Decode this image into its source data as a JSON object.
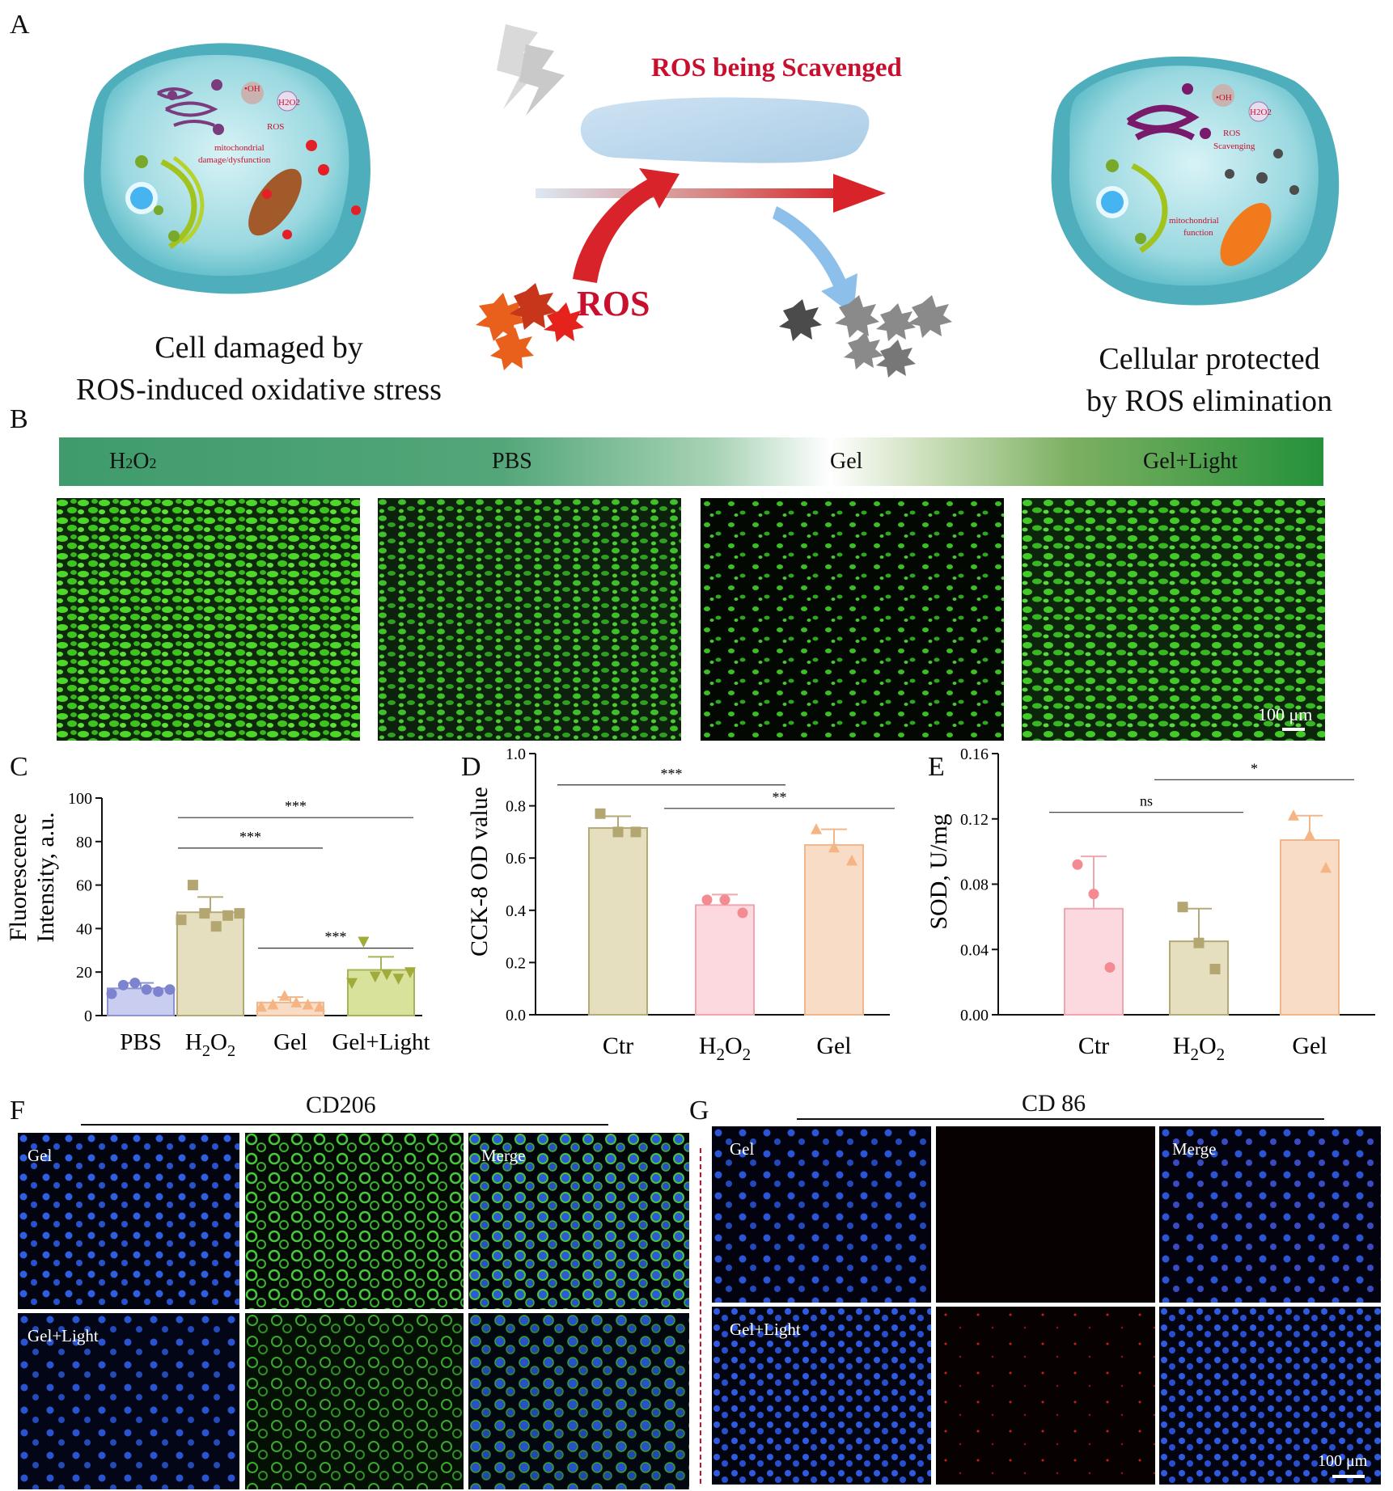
{
  "panels": {
    "A": "A",
    "B": "B",
    "C": "C",
    "D": "D",
    "E": "E",
    "F": "F",
    "G": "G"
  },
  "schematic": {
    "left_caption_line1": "Cell damaged by",
    "left_caption_line2": "ROS-induced oxidative stress",
    "right_caption_line1": "Cellular protected",
    "right_caption_line2": "by ROS elimination",
    "ros_scavenged": "ROS being Scavenged",
    "ros": "ROS",
    "left_cell": {
      "oh": "•OH",
      "h2o2": "H2O2",
      "ros": "ROS",
      "mito1": "mitochondrial",
      "mito2": "damage/dysfunction"
    },
    "right_cell": {
      "oh": "•OH",
      "h2o2": "H2O2",
      "ros1": "ROS",
      "ros2": "Scavenging",
      "mito1": "mitochondrial",
      "mito2": "function"
    }
  },
  "groups_bar": {
    "labels": [
      "H2O2",
      "PBS",
      "Gel",
      "Gel+Light"
    ]
  },
  "scalebar_b": "100 μm",
  "scalebar_g": "100 μm",
  "panel_f": {
    "title": "CD206",
    "row1": "Gel",
    "row2": "Gel+Light",
    "merge": "Merge"
  },
  "panel_g": {
    "title": "CD 86",
    "row1": "Gel",
    "row2": "Gel+Light",
    "merge": "Merge"
  },
  "chart_data": [
    {
      "panel": "C",
      "type": "bar",
      "ylabel_line1": "Fluorescence",
      "ylabel_line2": "Intensity, a.u.",
      "ylim": [
        0,
        100
      ],
      "yticks": [
        0,
        20,
        40,
        60,
        80,
        100
      ],
      "categories": [
        "PBS",
        "H2O2",
        "Gel",
        "Gel+Light"
      ],
      "values": [
        12.5,
        47.5,
        6.0,
        21.0
      ],
      "errors": [
        2.5,
        7.0,
        2.5,
        6.0
      ],
      "points": [
        [
          10,
          14,
          15,
          12,
          11,
          12
        ],
        [
          44,
          60,
          47,
          41,
          46,
          47
        ],
        [
          4,
          5,
          9,
          6,
          5,
          4
        ],
        [
          15,
          34,
          18,
          19,
          17,
          20
        ]
      ],
      "colors": [
        "#c9cdf0",
        "#e6dfbf",
        "#f8dcc6",
        "#d9e29b"
      ],
      "edge_colors": [
        "#8d92d6",
        "#b4aa78",
        "#f0b78d",
        "#a7b25a"
      ],
      "marker_colors": [
        "#7d83cf",
        "#b3a670",
        "#f5b483",
        "#a0ab3c"
      ],
      "significance": [
        {
          "from": 1,
          "to": 3,
          "label": "***",
          "y": 91
        },
        {
          "from": 1,
          "to": 2,
          "label": "***",
          "y": 77
        },
        {
          "from": 2,
          "to": 3,
          "label": "***",
          "y": 31
        }
      ]
    },
    {
      "panel": "D",
      "type": "bar",
      "ylabel": "CCK-8 OD value",
      "ylim": [
        0,
        1.0
      ],
      "yticks": [
        "0.0",
        "0.2",
        "0.4",
        "0.6",
        "0.8",
        "1.0"
      ],
      "categories": [
        "Ctr",
        "H2O2",
        "Gel"
      ],
      "values": [
        0.715,
        0.42,
        0.65
      ],
      "errors": [
        0.045,
        0.04,
        0.06
      ],
      "points": [
        [
          0.77,
          0.7,
          0.7
        ],
        [
          0.44,
          0.44,
          0.39
        ],
        [
          0.71,
          0.64,
          0.59
        ]
      ],
      "colors": [
        "#e6dfbf",
        "#fbd9de",
        "#f8dcc6"
      ],
      "edge_colors": [
        "#b4aa78",
        "#f0a6ae",
        "#f0b78d"
      ],
      "marker_colors": [
        "#b3a670",
        "#f48b93",
        "#f5b483"
      ],
      "significance": [
        {
          "from": 0,
          "to": 1,
          "label": "***",
          "y": 0.88
        },
        {
          "from": 1,
          "to": 2,
          "label": "**",
          "y": 0.79
        }
      ]
    },
    {
      "panel": "E",
      "type": "bar",
      "ylabel": "SOD, U/mg",
      "ylim": [
        0,
        0.16
      ],
      "yticks": [
        "0.00",
        "0.04",
        "0.08",
        "0.12",
        "0.16"
      ],
      "categories": [
        "Ctr",
        "H2O2",
        "Gel"
      ],
      "values": [
        0.065,
        0.045,
        0.107
      ],
      "errors": [
        0.032,
        0.02,
        0.015
      ],
      "points": [
        [
          0.092,
          0.074,
          0.029
        ],
        [
          0.066,
          0.044,
          0.028
        ],
        [
          0.122,
          0.11,
          0.09
        ]
      ],
      "colors": [
        "#fbd9de",
        "#e6dfbf",
        "#f8dcc6"
      ],
      "edge_colors": [
        "#f0a6ae",
        "#b4aa78",
        "#f0b78d"
      ],
      "marker_colors": [
        "#f48b93",
        "#b3a670",
        "#f5b483"
      ],
      "significance": [
        {
          "from": 0,
          "to": 1,
          "label": "ns",
          "y": 0.124
        },
        {
          "from": 1,
          "to": 2,
          "label": "*",
          "y": 0.144
        }
      ]
    }
  ]
}
